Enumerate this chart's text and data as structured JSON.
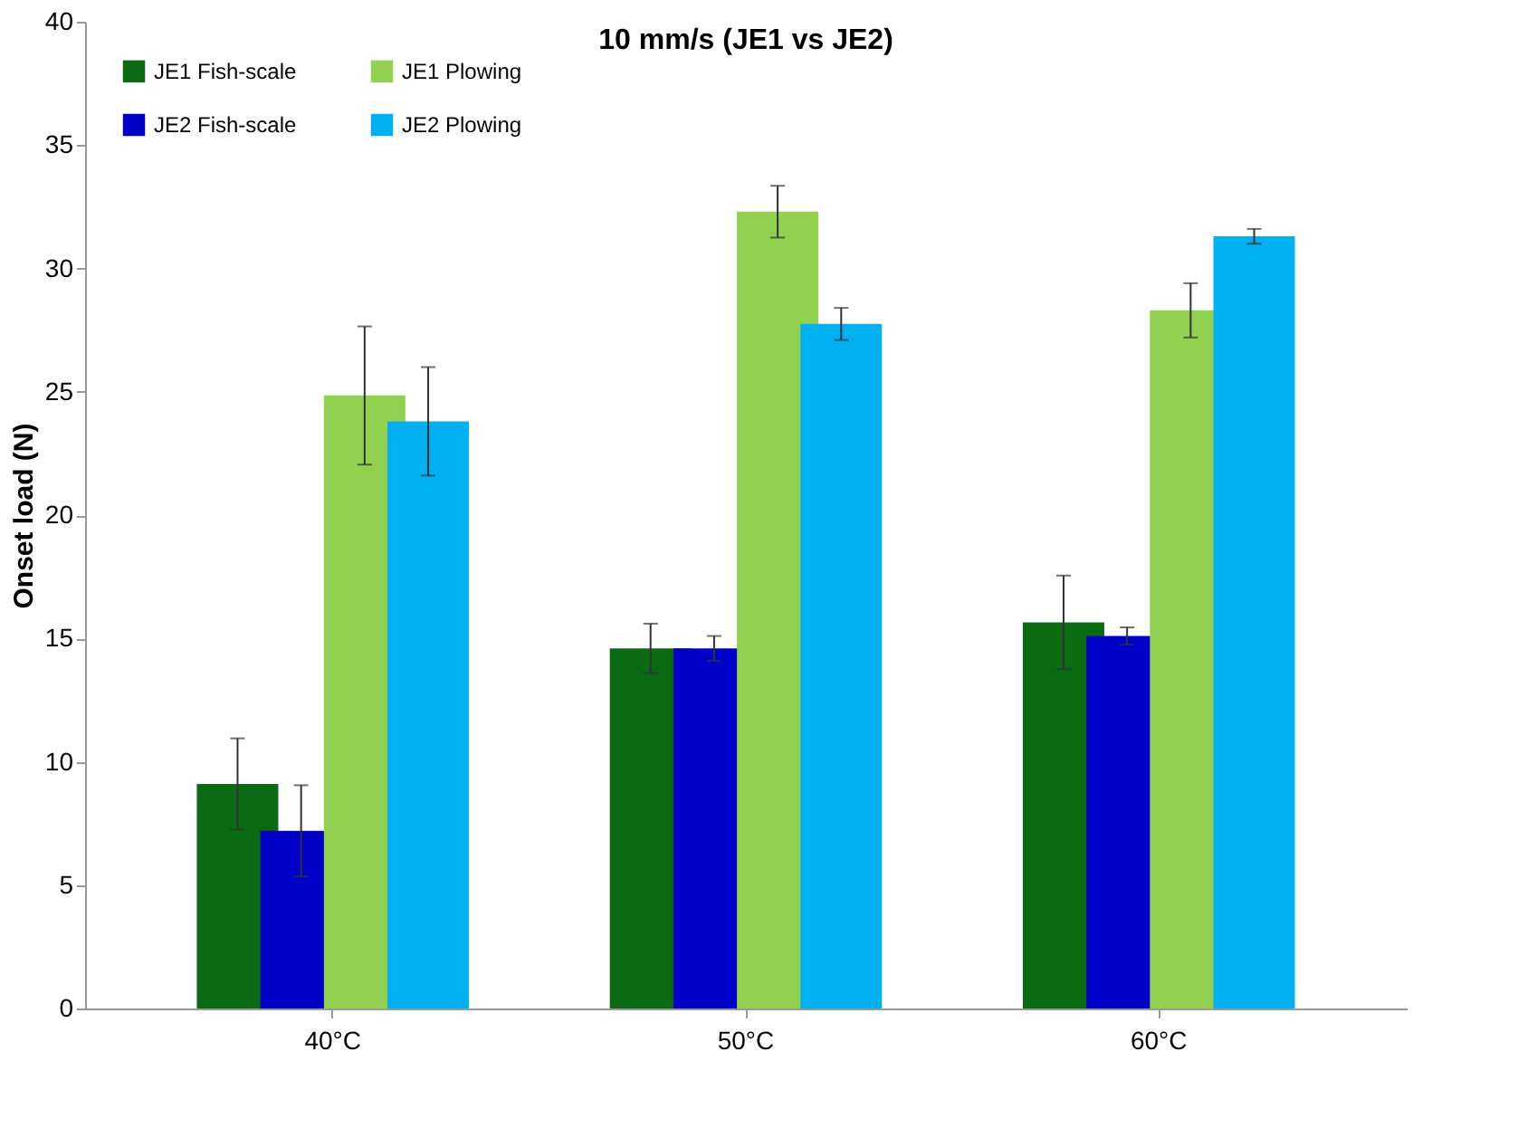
{
  "chart_data": {
    "type": "bar",
    "title": "10 mm/s (JE1 vs JE2)",
    "ylabel": "Onset load (N)",
    "categories": [
      "40°C",
      "50°C",
      "60°C"
    ],
    "series": [
      {
        "name": "JE1 Fish-scale",
        "color": "#0a6b12",
        "values": [
          9.1,
          14.6,
          15.65
        ],
        "errors": [
          1.85,
          1.0,
          1.9
        ]
      },
      {
        "name": "JE2 Fish-scale",
        "color": "#0000c8",
        "values": [
          7.2,
          14.6,
          15.1
        ],
        "errors": [
          1.85,
          0.5,
          0.35
        ]
      },
      {
        "name": "JE1 Plowing",
        "color": "#92d050",
        "values": [
          24.85,
          32.3,
          28.3
        ],
        "errors": [
          2.8,
          1.05,
          1.1
        ]
      },
      {
        "name": "JE2 Plowing",
        "color": "#00b0f0",
        "values": [
          23.8,
          27.75,
          31.3
        ],
        "errors": [
          2.2,
          0.65,
          0.3
        ]
      }
    ],
    "ylim": [
      0,
      40
    ],
    "yticks": [
      0,
      5,
      10,
      15,
      20,
      25,
      30,
      35,
      40
    ],
    "grid": false,
    "legend": "top left"
  }
}
